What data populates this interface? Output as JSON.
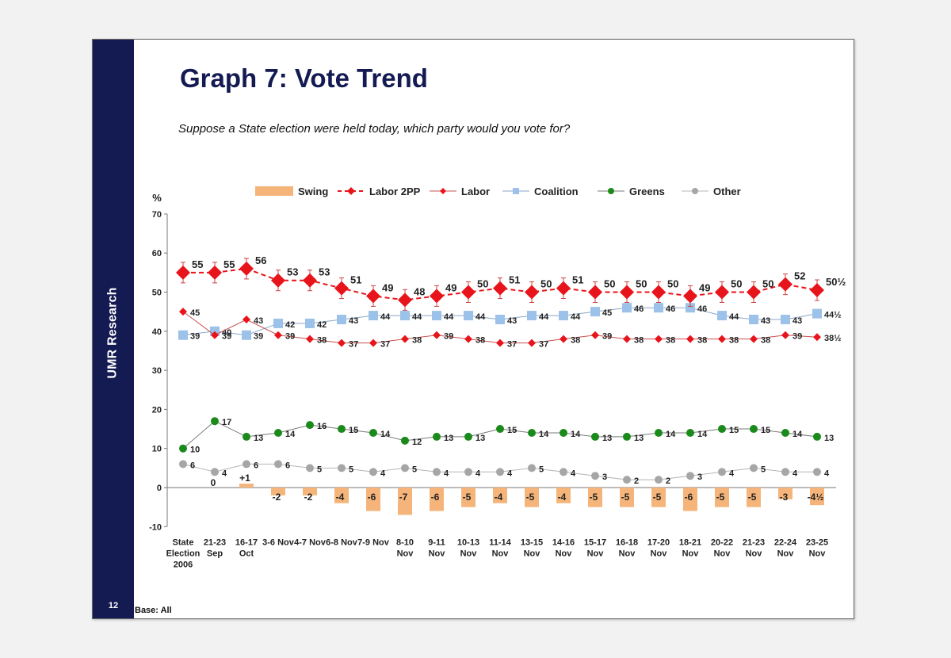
{
  "slide": {
    "brand": "UMR Research",
    "page_number": "12",
    "title": "Graph 7: Vote Trend",
    "question": "Suppose a State election were held today, which party would you vote for?",
    "base_note": "Base: All"
  },
  "colors": {
    "sidebar": "#141a52",
    "title": "#141a52",
    "swing": "#f5b57a",
    "labor_2pp": "#e8141b",
    "labor": "#e8141b",
    "coalition": "#9cc2ea",
    "greens": "#1a8a1a",
    "other": "#a6a6a6"
  },
  "chart_data": {
    "type": "line",
    "ylabel": "%",
    "ylim": [
      -10,
      70
    ],
    "yticks": [
      -10,
      0,
      10,
      20,
      30,
      40,
      50,
      60,
      70
    ],
    "grid": false,
    "legend_position": "top",
    "categories": [
      [
        "State",
        "Election",
        "2006"
      ],
      [
        "21-23",
        "Sep"
      ],
      [
        "16-17",
        "Oct"
      ],
      [
        "3-6 Nov"
      ],
      [
        "4-7 Nov"
      ],
      [
        "6-8 Nov"
      ],
      [
        "7-9 Nov"
      ],
      [
        "8-10",
        "Nov"
      ],
      [
        "9-11",
        "Nov"
      ],
      [
        "10-13",
        "Nov"
      ],
      [
        "11-14",
        "Nov"
      ],
      [
        "13-15",
        "Nov"
      ],
      [
        "14-16",
        "Nov"
      ],
      [
        "15-17",
        "Nov"
      ],
      [
        "16-18",
        "Nov"
      ],
      [
        "17-20",
        "Nov"
      ],
      [
        "18-21",
        "Nov"
      ],
      [
        "20-22",
        "Nov"
      ],
      [
        "21-23",
        "Nov"
      ],
      [
        "22-24",
        "Nov"
      ],
      [
        "23-25",
        "Nov"
      ]
    ],
    "series": [
      {
        "name": "Swing",
        "kind": "bar",
        "values": [
          0,
          0,
          1,
          -2,
          -2,
          -4,
          -6,
          -7,
          -6,
          -5,
          -4,
          -5,
          -4,
          -5,
          -5,
          -5,
          -6,
          -5,
          -5,
          -3,
          -4.5
        ],
        "labels": [
          "",
          "0",
          "+1",
          "-2",
          "-2",
          "-4",
          "-6",
          "-7",
          "-6",
          "-5",
          "-4",
          "-5",
          "-4",
          "-5",
          "-5",
          "-5",
          "-6",
          "-5",
          "-5",
          "-3",
          "-4½"
        ]
      },
      {
        "name": "Labor 2PP",
        "kind": "line-dashed-diamond",
        "values": [
          55,
          55,
          56,
          53,
          53,
          51,
          49,
          48,
          49,
          50,
          51,
          50,
          51,
          50,
          50,
          50,
          49,
          50,
          50,
          52,
          50.5
        ],
        "labels": [
          "55",
          "55",
          "56",
          "53",
          "53",
          "51",
          "49",
          "48",
          "49",
          "50",
          "51",
          "50",
          "51",
          "50",
          "50",
          "50",
          "49",
          "50",
          "50",
          "52",
          "50½"
        ]
      },
      {
        "name": "Labor",
        "kind": "line-diamond",
        "values": [
          45,
          39,
          43,
          39,
          38,
          37,
          37,
          38,
          39,
          38,
          37,
          37,
          38,
          39,
          38,
          38,
          38,
          38,
          38,
          39,
          38.5
        ],
        "labels": [
          "45",
          "39",
          "43",
          "39",
          "38",
          "37",
          "37",
          "38",
          "39",
          "38",
          "37",
          "37",
          "38",
          "39",
          "38",
          "38",
          "38",
          "38",
          "38",
          "39",
          "38½"
        ]
      },
      {
        "name": "Coalition",
        "kind": "line-square",
        "values": [
          39,
          40,
          39,
          42,
          42,
          43,
          44,
          44,
          44,
          44,
          43,
          44,
          44,
          45,
          46,
          46,
          46,
          44,
          43,
          43,
          44.5
        ],
        "labels": [
          "39",
          "40",
          "39",
          "42",
          "42",
          "43",
          "44",
          "44",
          "44",
          "44",
          "43",
          "44",
          "44",
          "45",
          "46",
          "46",
          "46",
          "44",
          "43",
          "43",
          "44½"
        ]
      },
      {
        "name": "Greens",
        "kind": "line-circle",
        "values": [
          10,
          17,
          13,
          14,
          16,
          15,
          14,
          12,
          13,
          13,
          15,
          14,
          14,
          13,
          13,
          14,
          14,
          15,
          15,
          14,
          13
        ],
        "labels": [
          "10",
          "17",
          "13",
          "14",
          "16",
          "15",
          "14",
          "12",
          "13",
          "13",
          "15",
          "14",
          "14",
          "13",
          "13",
          "14",
          "14",
          "15",
          "15",
          "14",
          "13"
        ]
      },
      {
        "name": "Other",
        "kind": "line-circle",
        "values": [
          6,
          4,
          6,
          6,
          5,
          5,
          4,
          5,
          4,
          4,
          4,
          5,
          4,
          3,
          2,
          2,
          3,
          4,
          5,
          4,
          4
        ],
        "labels": [
          "6",
          "4",
          "6",
          "6",
          "5",
          "5",
          "4",
          "5",
          "4",
          "4",
          "4",
          "5",
          "4",
          "3",
          "2",
          "2",
          "3",
          "4",
          "5",
          "4",
          "4"
        ]
      }
    ]
  }
}
